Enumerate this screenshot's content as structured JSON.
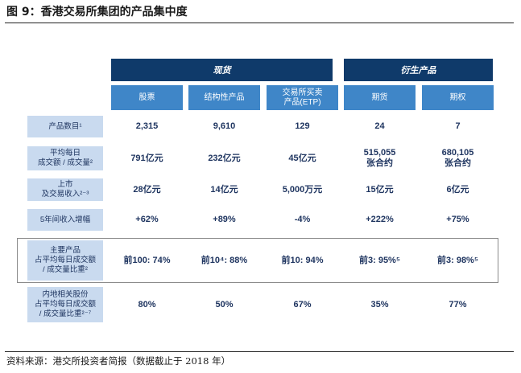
{
  "title": "图 9：香港交易所集团的产品集中度",
  "groups": {
    "spot": "现货",
    "derivatives": "衍生产品"
  },
  "columns": [
    "股票",
    "结构性产品",
    "交易所买卖\n产品(ETP)",
    "期货",
    "期权"
  ],
  "rows": [
    {
      "label": "产品数目¹",
      "cells": [
        "2,315",
        "9,610",
        "129",
        "24",
        "7"
      ]
    },
    {
      "label": "平均每日\n成交额 / 成交量²",
      "cells": [
        "791亿元",
        "232亿元",
        "45亿元",
        "515,055\n张合约",
        "680,105\n张合约"
      ]
    },
    {
      "label": "上市\n及交易收入²⁻³",
      "cells": [
        "28亿元",
        "14亿元",
        "5,000万元",
        "15亿元",
        "6亿元"
      ]
    },
    {
      "label": "5年间收入增幅",
      "cells": [
        "+62%",
        "+89%",
        "-4%",
        "+222%",
        "+75%"
      ]
    },
    {
      "label": "主要产品\n占平均每日成交额\n/ 成交量比重²",
      "cells": [
        "前100: 74%",
        "前10⁴: 88%",
        "前10: 94%",
        "前3: 95%⁵",
        "前3: 98%⁵"
      ]
    },
    {
      "label": "内地相关股份\n占平均每日成交额\n/ 成交量比重²⁻⁷",
      "cells": [
        "80%",
        "50%",
        "67%",
        "35%",
        "77%"
      ]
    }
  ],
  "source": "资料来源：港交所投资者简报（数据截止于 2018 年）"
}
